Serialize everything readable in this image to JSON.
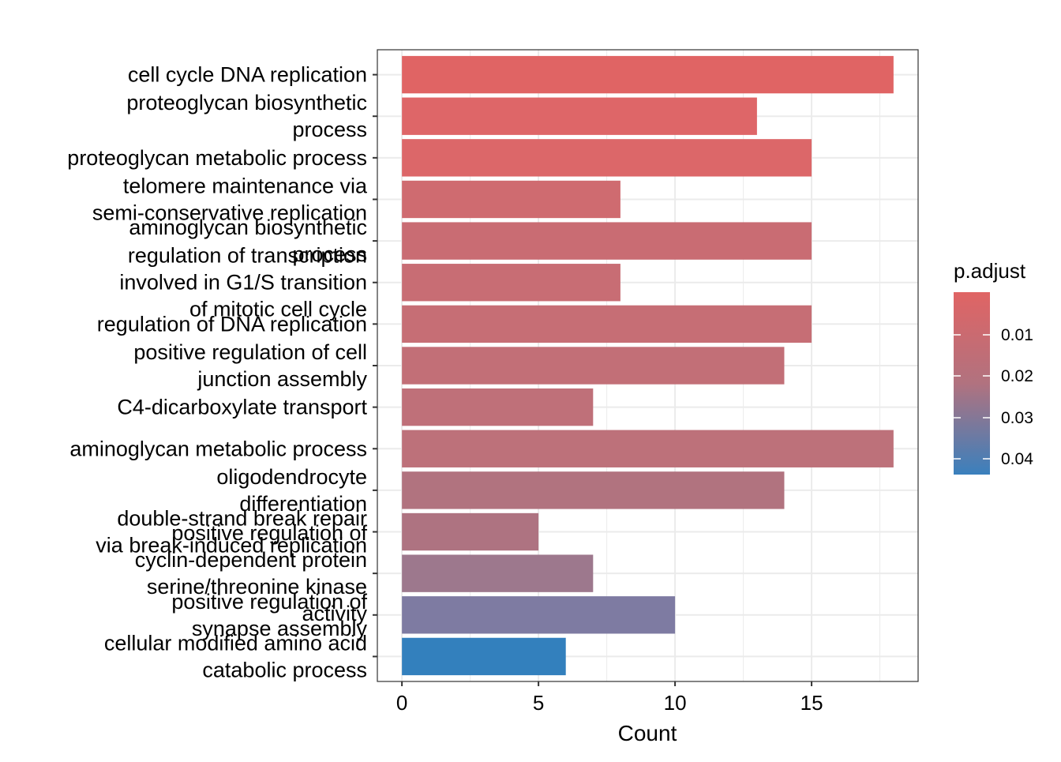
{
  "chart_data": {
    "type": "bar",
    "orientation": "horizontal",
    "title": "",
    "xlabel": "Count",
    "ylabel": "",
    "xlim": [
      -0.9,
      18.9
    ],
    "xticks": [
      0,
      5,
      10,
      15
    ],
    "grid": true,
    "legend_position": "right",
    "categories": [
      {
        "lines": [
          "cell cycle DNA replication"
        ],
        "value": 18,
        "color": "#E06464"
      },
      {
        "lines": [
          "proteoglycan biosynthetic",
          "process"
        ],
        "value": 13,
        "color": "#DE6668"
      },
      {
        "lines": [
          "proteoglycan metabolic process"
        ],
        "value": 15,
        "color": "#DC6769"
      },
      {
        "lines": [
          "telomere maintenance via",
          "semi-conservative replication"
        ],
        "value": 8,
        "color": "#CF6B70"
      },
      {
        "lines": [
          "aminoglycan biosynthetic",
          "process"
        ],
        "value": 15,
        "color": "#C96C73"
      },
      {
        "lines": [
          "regulation of transcription",
          "involved in G1/S transition",
          "of mitotic cell cycle"
        ],
        "value": 8,
        "color": "#C86D74"
      },
      {
        "lines": [
          "regulation of DNA replication"
        ],
        "value": 15,
        "color": "#C66E75"
      },
      {
        "lines": [
          "positive regulation of cell",
          "junction assembly"
        ],
        "value": 14,
        "color": "#C26F77"
      },
      {
        "lines": [
          "C4-dicarboxylate transport"
        ],
        "value": 7,
        "color": "#BF7079"
      },
      {
        "lines": [
          "aminoglycan metabolic process"
        ],
        "value": 18,
        "color": "#BD717A"
      },
      {
        "lines": [
          "oligodendrocyte",
          "differentiation"
        ],
        "value": 14,
        "color": "#B1737F"
      },
      {
        "lines": [
          "double-strand break repair",
          "via break-induced replication"
        ],
        "value": 5,
        "color": "#AE7381"
      },
      {
        "lines": [
          "positive regulation of",
          "cyclin-dependent protein",
          "serine/threonine kinase",
          "activity"
        ],
        "value": 7,
        "color": "#9D788D"
      },
      {
        "lines": [
          "positive regulation of",
          "synapse assembly"
        ],
        "value": 10,
        "color": "#7E7BA2"
      },
      {
        "lines": [
          "cellular modified amino acid",
          "catabolic process"
        ],
        "value": 6,
        "color": "#3380BD"
      }
    ],
    "legend": {
      "title": "p.adjust",
      "labels": [
        "0.01",
        "0.02",
        "0.03",
        "0.04"
      ],
      "gradient_top": "#E06464",
      "gradient_mid": "#B1727F",
      "gradient_bottom": "#3A80BD"
    }
  }
}
